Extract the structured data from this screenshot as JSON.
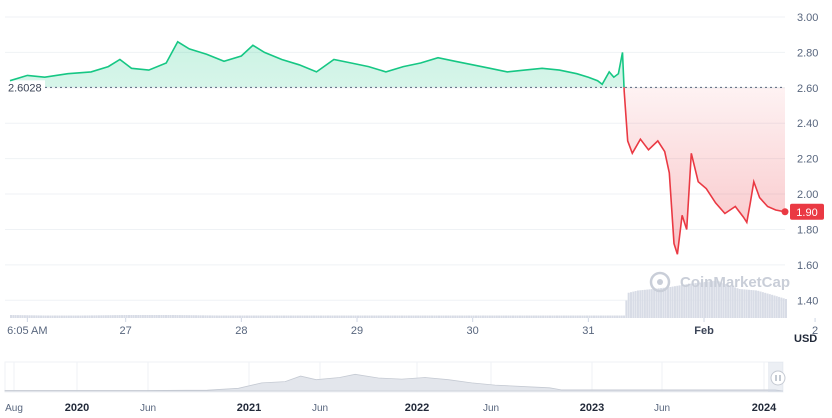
{
  "chart_data": {
    "type": "line",
    "unit": "USD",
    "watermark": "CoinMarketCap",
    "ylim": [
      1.3,
      3.0
    ],
    "y_ticks": [
      "3.00",
      "2.80",
      "2.60",
      "2.40",
      "2.20",
      "2.00",
      "1.80",
      "1.60",
      "1.40"
    ],
    "x_ticks": [
      "6:05 AM",
      "27",
      "28",
      "29",
      "30",
      "31",
      "Feb",
      "2"
    ],
    "reference_value": 2.6028,
    "reference_label": "2.6028",
    "current_value": 1.9,
    "current_label": "1.90",
    "colors": {
      "above": "#16c784",
      "below": "#ea3943",
      "volume": "#d8dce6",
      "grid": "#eff2f5"
    },
    "series": [
      {
        "points": [
          [
            0.0,
            2.64
          ],
          [
            0.15,
            2.67
          ],
          [
            0.3,
            2.66
          ],
          [
            0.5,
            2.68
          ],
          [
            0.7,
            2.69
          ],
          [
            0.85,
            2.72
          ],
          [
            0.95,
            2.76
          ],
          [
            1.05,
            2.71
          ],
          [
            1.2,
            2.7
          ],
          [
            1.35,
            2.74
          ],
          [
            1.45,
            2.86
          ],
          [
            1.55,
            2.82
          ],
          [
            1.7,
            2.79
          ],
          [
            1.85,
            2.75
          ],
          [
            2.0,
            2.78
          ],
          [
            2.1,
            2.84
          ],
          [
            2.2,
            2.8
          ],
          [
            2.35,
            2.76
          ],
          [
            2.5,
            2.73
          ],
          [
            2.65,
            2.69
          ],
          [
            2.8,
            2.76
          ],
          [
            2.95,
            2.74
          ],
          [
            3.1,
            2.72
          ],
          [
            3.25,
            2.69
          ],
          [
            3.4,
            2.72
          ],
          [
            3.55,
            2.74
          ],
          [
            3.7,
            2.77
          ],
          [
            3.85,
            2.75
          ],
          [
            4.0,
            2.73
          ],
          [
            4.15,
            2.71
          ],
          [
            4.3,
            2.69
          ],
          [
            4.45,
            2.7
          ],
          [
            4.6,
            2.71
          ],
          [
            4.75,
            2.7
          ],
          [
            4.9,
            2.68
          ],
          [
            5.0,
            2.66
          ],
          [
            5.08,
            2.64
          ],
          [
            5.12,
            2.62
          ],
          [
            5.18,
            2.69
          ],
          [
            5.22,
            2.66
          ],
          [
            5.26,
            2.68
          ],
          [
            5.295,
            2.8
          ],
          [
            5.31,
            2.58
          ],
          [
            5.34,
            2.3
          ],
          [
            5.38,
            2.23
          ],
          [
            5.45,
            2.31
          ],
          [
            5.52,
            2.25
          ],
          [
            5.6,
            2.3
          ],
          [
            5.66,
            2.24
          ],
          [
            5.7,
            2.12
          ],
          [
            5.74,
            1.72
          ],
          [
            5.77,
            1.66
          ],
          [
            5.81,
            1.88
          ],
          [
            5.85,
            1.8
          ],
          [
            5.89,
            2.23
          ],
          [
            5.95,
            2.07
          ],
          [
            6.02,
            2.03
          ],
          [
            6.1,
            1.95
          ],
          [
            6.18,
            1.89
          ],
          [
            6.27,
            1.93
          ],
          [
            6.34,
            1.87
          ],
          [
            6.37,
            1.84
          ],
          [
            6.4,
            1.95
          ],
          [
            6.43,
            2.07
          ],
          [
            6.48,
            1.98
          ],
          [
            6.55,
            1.93
          ],
          [
            6.62,
            1.91
          ],
          [
            6.7,
            1.9
          ]
        ]
      }
    ],
    "volume": [
      [
        0.0,
        0.06
      ],
      [
        0.3,
        0.05
      ],
      [
        0.6,
        0.05
      ],
      [
        1.0,
        0.06
      ],
      [
        1.4,
        0.06
      ],
      [
        1.8,
        0.05
      ],
      [
        2.2,
        0.05
      ],
      [
        2.6,
        0.05
      ],
      [
        3.0,
        0.05
      ],
      [
        3.4,
        0.05
      ],
      [
        3.8,
        0.05
      ],
      [
        4.2,
        0.05
      ],
      [
        4.6,
        0.05
      ],
      [
        5.0,
        0.05
      ],
      [
        5.3,
        0.05
      ],
      [
        5.33,
        0.5
      ],
      [
        5.42,
        0.55
      ],
      [
        5.55,
        0.58
      ],
      [
        5.7,
        0.62
      ],
      [
        5.85,
        0.68
      ],
      [
        6.0,
        0.72
      ],
      [
        6.1,
        0.75
      ],
      [
        6.2,
        0.66
      ],
      [
        6.3,
        0.58
      ],
      [
        6.45,
        0.55
      ],
      [
        6.6,
        0.45
      ],
      [
        6.7,
        0.38
      ]
    ],
    "navigator": {
      "x_ticks": [
        "Aug",
        "2020",
        "Jun",
        "2021",
        "Jun",
        "2022",
        "Jun",
        "2023",
        "Jun",
        "2024"
      ],
      "bold_ticks": [
        "2020",
        "2021",
        "2022",
        "2023",
        "2024"
      ],
      "profile": [
        [
          0.0,
          0.02
        ],
        [
          0.18,
          0.02
        ],
        [
          0.26,
          0.03
        ],
        [
          0.3,
          0.1
        ],
        [
          0.33,
          0.3
        ],
        [
          0.36,
          0.35
        ],
        [
          0.38,
          0.55
        ],
        [
          0.4,
          0.42
        ],
        [
          0.43,
          0.5
        ],
        [
          0.45,
          0.62
        ],
        [
          0.48,
          0.48
        ],
        [
          0.51,
          0.44
        ],
        [
          0.54,
          0.5
        ],
        [
          0.57,
          0.42
        ],
        [
          0.6,
          0.3
        ],
        [
          0.63,
          0.22
        ],
        [
          0.67,
          0.16
        ],
        [
          0.7,
          0.12
        ],
        [
          0.715,
          0.04
        ],
        [
          0.76,
          0.04
        ],
        [
          0.8,
          0.04
        ],
        [
          0.85,
          0.04
        ],
        [
          0.9,
          0.04
        ],
        [
          0.94,
          0.04
        ],
        [
          0.99,
          0.04
        ]
      ]
    }
  }
}
